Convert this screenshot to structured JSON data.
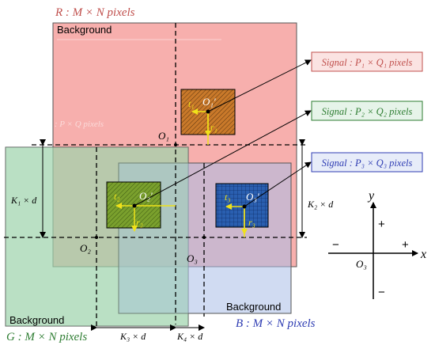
{
  "colors": {
    "red_fill": "#f6a6a4",
    "red_text": "#c0504d",
    "green_fill": "#9ed3ad",
    "green_text": "#2e7d32",
    "blue_fill": "#a9bde8",
    "blue_text": "#2f3db3",
    "signal_red": "#c9792a",
    "signal_green": "#7aa02d",
    "signal_blue": "#2a5fb0",
    "yellow": "#f0e21a"
  },
  "frames": {
    "red_label": "R : M × N pixels",
    "green_label": "G : M × N pixels",
    "blue_label": "B : M × N pixels",
    "bg_red": "Background",
    "bg_green": "Background",
    "bg_blue": "Background"
  },
  "signals": {
    "s1": "Signal : P₁ × Q₁ pixels",
    "s2": "Signal : P₂ × Q₂ pixels",
    "s3": "Signal : P₃ × Q₃ pixels",
    "ghost": "Signal : P × Q pixels"
  },
  "points": {
    "o1": "O₁",
    "o2": "O₂",
    "o3": "O₃",
    "o1p": "O₁′",
    "o2p": "O₂′",
    "o3p": "O₃′"
  },
  "vectors": {
    "t1": "t₁",
    "t2": "t₂",
    "t3": "t₃",
    "r1": "r₁",
    "r2": "r₂",
    "r3": "r₃"
  },
  "dims": {
    "k1": "K₁ × d",
    "k2": "K₂ × d",
    "k3": "K₃ × d",
    "k4": "K₄ × d"
  },
  "axes": {
    "x": "x",
    "y": "y",
    "plus_x": "+",
    "minus_x": "−",
    "plus_y": "+",
    "minus_y": "−",
    "origin": "O₃"
  }
}
